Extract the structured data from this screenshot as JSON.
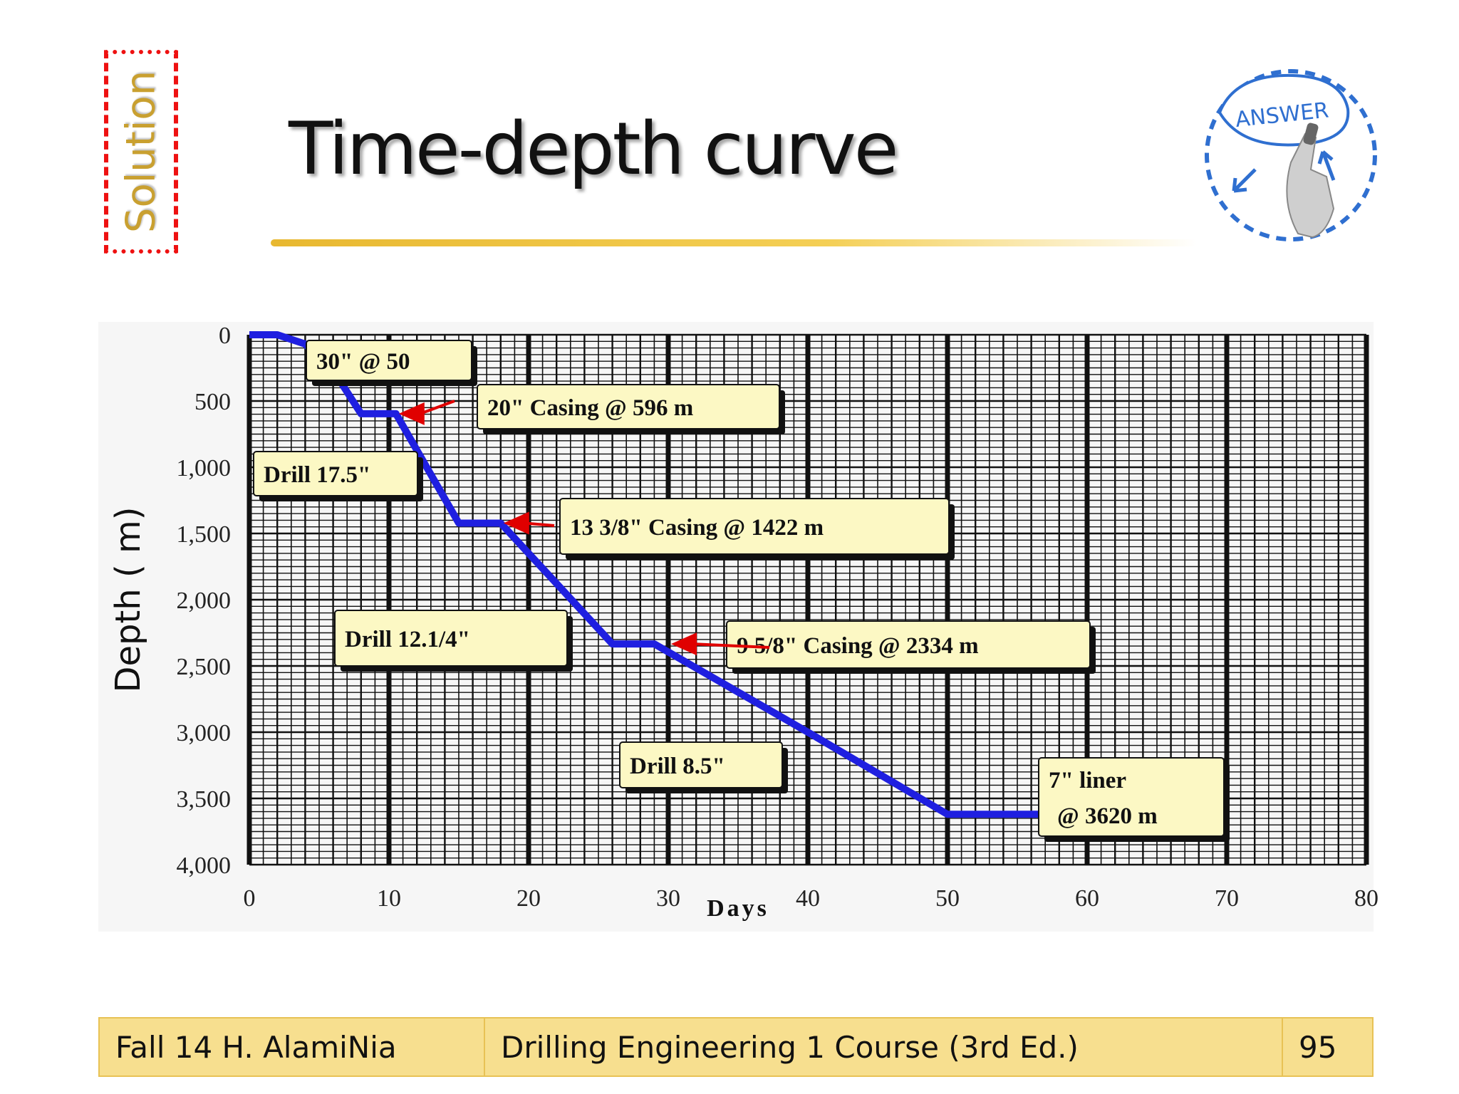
{
  "slide": {
    "side_label": "Solution",
    "title": "Time-depth curve",
    "badge_text": "ANSWER",
    "footer": {
      "left": "Fall 14 H. AlamiNia",
      "center": "Drilling Engineering 1 Course (3rd Ed.)",
      "page": "95"
    }
  },
  "chart_data": {
    "type": "line",
    "title": "",
    "xlabel": "Days",
    "ylabel": "Depth ( m)",
    "xlim": [
      0,
      80
    ],
    "ylim": [
      0,
      4000
    ],
    "y_inverted": true,
    "x_ticks": [
      "0",
      "10",
      "20",
      "30",
      "40",
      "50",
      "60",
      "70",
      "80"
    ],
    "y_ticks": [
      "0",
      "500",
      "1,000",
      "1,500",
      "2,000",
      "2,500",
      "3,000",
      "3,500",
      "4,000"
    ],
    "grid": true,
    "line_color": "#1f1fe0",
    "series": [
      {
        "x": [
          0,
          2,
          4,
          6.5,
          8,
          10.5,
          15,
          18,
          26,
          29,
          40,
          50,
          57
        ],
        "y": [
          0,
          0,
          70,
          350,
          596,
          596,
          1422,
          1422,
          2334,
          2334,
          3000,
          3620,
          3620
        ]
      }
    ],
    "annotations": [
      {
        "id": "a1",
        "lines": [
          "30\" @ 50"
        ]
      },
      {
        "id": "a2",
        "lines": [
          "20\" Casing  @ 596 m"
        ],
        "arrow_to": [
          10.5,
          596
        ]
      },
      {
        "id": "a3",
        "lines": [
          "Drill 17.5\""
        ]
      },
      {
        "id": "a4",
        "lines": [
          "13 3/8\" Casing @ 1422 m"
        ],
        "arrow_to": [
          18,
          1422
        ]
      },
      {
        "id": "a5",
        "lines": [
          "Drill 12.1/4\""
        ]
      },
      {
        "id": "a6",
        "lines": [
          "9 5/8\" Casing  @ 2334 m"
        ],
        "arrow_to": [
          30,
          2334
        ]
      },
      {
        "id": "a7",
        "lines": [
          "Drill 8.5\""
        ]
      },
      {
        "id": "a8",
        "lines": [
          "7\" liner",
          "@ 3620 m"
        ]
      }
    ],
    "box_color": "#fcf8c4",
    "arrow_color": "#e00000"
  }
}
